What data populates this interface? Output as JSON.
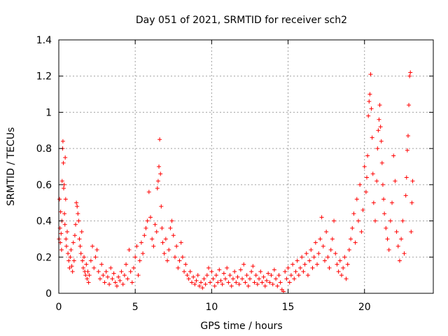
{
  "chart_data": {
    "type": "scatter",
    "title": "Day 051 of 2021, SRMTID for receiver sch2",
    "xlabel": "GPS time / hours",
    "ylabel": "SRMTID / TECUs",
    "xlim": [
      0,
      24.5
    ],
    "ylim": [
      0,
      1.4
    ],
    "xticks": [
      0,
      5,
      10,
      15,
      20
    ],
    "xtick_labels": [
      "0",
      "5",
      "10",
      "15",
      "20"
    ],
    "yticks": [
      0,
      0.2,
      0.4,
      0.6,
      0.8,
      1.0,
      1.2,
      1.4
    ],
    "ytick_labels": [
      "0",
      "0.2",
      "0.4",
      "0.6",
      "0.8",
      "1",
      "1.2",
      "1.4"
    ],
    "grid": true,
    "marker": "plus",
    "series": [
      {
        "name": "sch2",
        "color": "#ff0000",
        "points": [
          [
            0.02,
            0.3
          ],
          [
            0.05,
            0.52
          ],
          [
            0.08,
            0.36
          ],
          [
            0.1,
            0.28
          ],
          [
            0.12,
            0.45
          ],
          [
            0.15,
            0.33
          ],
          [
            0.18,
            0.24
          ],
          [
            0.2,
            0.4
          ],
          [
            0.22,
            0.62
          ],
          [
            0.25,
            0.8
          ],
          [
            0.27,
            0.84
          ],
          [
            0.3,
            0.72
          ],
          [
            0.32,
            0.58
          ],
          [
            0.35,
            0.6
          ],
          [
            0.37,
            0.44
          ],
          [
            0.4,
            0.38
          ],
          [
            0.42,
            0.75
          ],
          [
            0.45,
            0.52
          ],
          [
            0.47,
            0.3
          ],
          [
            0.5,
            0.26
          ],
          [
            0.55,
            0.34
          ],
          [
            0.6,
            0.22
          ],
          [
            0.65,
            0.18
          ],
          [
            0.7,
            0.14
          ],
          [
            0.75,
            0.2
          ],
          [
            0.8,
            0.24
          ],
          [
            0.85,
            0.15
          ],
          [
            0.9,
            0.12
          ],
          [
            0.95,
            0.28
          ],
          [
            1.0,
            0.18
          ],
          [
            1.05,
            0.32
          ],
          [
            1.1,
            0.38
          ],
          [
            1.15,
            0.5
          ],
          [
            1.2,
            0.48
          ],
          [
            1.25,
            0.44
          ],
          [
            1.3,
            0.4
          ],
          [
            1.35,
            0.3
          ],
          [
            1.4,
            0.26
          ],
          [
            1.45,
            0.22
          ],
          [
            1.5,
            0.34
          ],
          [
            1.55,
            0.18
          ],
          [
            1.6,
            0.14
          ],
          [
            1.65,
            0.2
          ],
          [
            1.7,
            0.12
          ],
          [
            1.75,
            0.1
          ],
          [
            1.8,
            0.16
          ],
          [
            1.85,
            0.08
          ],
          [
            1.9,
            0.12
          ],
          [
            1.95,
            0.06
          ],
          [
            2.0,
            0.1
          ],
          [
            2.1,
            0.18
          ],
          [
            2.2,
            0.26
          ],
          [
            2.3,
            0.14
          ],
          [
            2.4,
            0.2
          ],
          [
            2.5,
            0.24
          ],
          [
            2.6,
            0.12
          ],
          [
            2.7,
            0.08
          ],
          [
            2.8,
            0.16
          ],
          [
            2.9,
            0.1
          ],
          [
            3.0,
            0.06
          ],
          [
            3.1,
            0.12
          ],
          [
            3.2,
            0.09
          ],
          [
            3.3,
            0.05
          ],
          [
            3.4,
            0.14
          ],
          [
            3.5,
            0.08
          ],
          [
            3.6,
            0.11
          ],
          [
            3.7,
            0.06
          ],
          [
            3.8,
            0.04
          ],
          [
            3.9,
            0.09
          ],
          [
            4.0,
            0.07
          ],
          [
            4.1,
            0.12
          ],
          [
            4.2,
            0.05
          ],
          [
            4.3,
            0.1
          ],
          [
            4.4,
            0.16
          ],
          [
            4.5,
            0.08
          ],
          [
            4.6,
            0.24
          ],
          [
            4.7,
            0.12
          ],
          [
            4.8,
            0.06
          ],
          [
            4.9,
            0.14
          ],
          [
            5.0,
            0.2
          ],
          [
            5.1,
            0.26
          ],
          [
            5.2,
            0.1
          ],
          [
            5.3,
            0.18
          ],
          [
            5.4,
            0.28
          ],
          [
            5.5,
            0.22
          ],
          [
            5.6,
            0.32
          ],
          [
            5.7,
            0.36
          ],
          [
            5.8,
            0.4
          ],
          [
            5.9,
            0.56
          ],
          [
            6.0,
            0.42
          ],
          [
            6.1,
            0.3
          ],
          [
            6.2,
            0.26
          ],
          [
            6.3,
            0.38
          ],
          [
            6.4,
            0.34
          ],
          [
            6.45,
            0.58
          ],
          [
            6.5,
            0.62
          ],
          [
            6.55,
            0.7
          ],
          [
            6.6,
            0.85
          ],
          [
            6.65,
            0.66
          ],
          [
            6.7,
            0.48
          ],
          [
            6.75,
            0.36
          ],
          [
            6.8,
            0.28
          ],
          [
            6.9,
            0.22
          ],
          [
            7.0,
            0.3
          ],
          [
            7.1,
            0.18
          ],
          [
            7.2,
            0.24
          ],
          [
            7.3,
            0.36
          ],
          [
            7.4,
            0.4
          ],
          [
            7.5,
            0.32
          ],
          [
            7.6,
            0.2
          ],
          [
            7.7,
            0.26
          ],
          [
            7.8,
            0.14
          ],
          [
            7.9,
            0.18
          ],
          [
            8.0,
            0.28
          ],
          [
            8.1,
            0.2
          ],
          [
            8.2,
            0.12
          ],
          [
            8.3,
            0.16
          ],
          [
            8.4,
            0.1
          ],
          [
            8.5,
            0.08
          ],
          [
            8.6,
            0.12
          ],
          [
            8.7,
            0.06
          ],
          [
            8.8,
            0.09
          ],
          [
            8.9,
            0.05
          ],
          [
            9.0,
            0.07
          ],
          [
            9.1,
            0.1
          ],
          [
            9.2,
            0.04
          ],
          [
            9.3,
            0.06
          ],
          [
            9.4,
            0.03
          ],
          [
            9.5,
            0.08
          ],
          [
            9.6,
            0.05
          ],
          [
            9.7,
            0.1
          ],
          [
            9.8,
            0.14
          ],
          [
            9.9,
            0.06
          ],
          [
            10.0,
            0.12
          ],
          [
            10.1,
            0.08
          ],
          [
            10.2,
            0.04
          ],
          [
            10.3,
            0.1
          ],
          [
            10.4,
            0.06
          ],
          [
            10.5,
            0.13
          ],
          [
            10.6,
            0.07
          ],
          [
            10.7,
            0.05
          ],
          [
            10.8,
            0.11
          ],
          [
            10.9,
            0.08
          ],
          [
            11.0,
            0.14
          ],
          [
            11.1,
            0.06
          ],
          [
            11.2,
            0.1
          ],
          [
            11.3,
            0.04
          ],
          [
            11.4,
            0.08
          ],
          [
            11.5,
            0.12
          ],
          [
            11.6,
            0.06
          ],
          [
            11.7,
            0.09
          ],
          [
            11.8,
            0.05
          ],
          [
            11.9,
            0.13
          ],
          [
            12.0,
            0.08
          ],
          [
            12.1,
            0.16
          ],
          [
            12.2,
            0.06
          ],
          [
            12.3,
            0.1
          ],
          [
            12.4,
            0.04
          ],
          [
            12.5,
            0.08
          ],
          [
            12.6,
            0.12
          ],
          [
            12.7,
            0.15
          ],
          [
            12.8,
            0.06
          ],
          [
            12.9,
            0.1
          ],
          [
            13.0,
            0.05
          ],
          [
            13.1,
            0.08
          ],
          [
            13.2,
            0.12
          ],
          [
            13.3,
            0.06
          ],
          [
            13.4,
            0.09
          ],
          [
            13.5,
            0.04
          ],
          [
            13.6,
            0.07
          ],
          [
            13.7,
            0.11
          ],
          [
            13.8,
            0.06
          ],
          [
            13.9,
            0.1
          ],
          [
            14.0,
            0.05
          ],
          [
            14.1,
            0.13
          ],
          [
            14.2,
            0.08
          ],
          [
            14.3,
            0.04
          ],
          [
            14.4,
            0.1
          ],
          [
            14.5,
            0.06
          ],
          [
            14.6,
            0.02
          ],
          [
            14.7,
            0.01
          ],
          [
            14.8,
            0.12
          ],
          [
            14.9,
            0.08
          ],
          [
            15.0,
            0.14
          ],
          [
            15.1,
            0.06
          ],
          [
            15.2,
            0.1
          ],
          [
            15.3,
            0.16
          ],
          [
            15.4,
            0.08
          ],
          [
            15.5,
            0.12
          ],
          [
            15.6,
            0.18
          ],
          [
            15.7,
            0.1
          ],
          [
            15.8,
            0.14
          ],
          [
            15.9,
            0.2
          ],
          [
            16.0,
            0.12
          ],
          [
            16.1,
            0.16
          ],
          [
            16.2,
            0.22
          ],
          [
            16.3,
            0.1
          ],
          [
            16.4,
            0.18
          ],
          [
            16.5,
            0.24
          ],
          [
            16.6,
            0.14
          ],
          [
            16.7,
            0.2
          ],
          [
            16.8,
            0.28
          ],
          [
            16.9,
            0.16
          ],
          [
            17.0,
            0.22
          ],
          [
            17.1,
            0.3
          ],
          [
            17.2,
            0.42
          ],
          [
            17.3,
            0.26
          ],
          [
            17.4,
            0.18
          ],
          [
            17.5,
            0.34
          ],
          [
            17.6,
            0.2
          ],
          [
            17.7,
            0.14
          ],
          [
            17.8,
            0.24
          ],
          [
            17.9,
            0.3
          ],
          [
            18.0,
            0.4
          ],
          [
            18.1,
            0.22
          ],
          [
            18.2,
            0.16
          ],
          [
            18.3,
            0.12
          ],
          [
            18.4,
            0.18
          ],
          [
            18.5,
            0.1
          ],
          [
            18.6,
            0.14
          ],
          [
            18.7,
            0.2
          ],
          [
            18.8,
            0.08
          ],
          [
            18.9,
            0.16
          ],
          [
            19.0,
            0.24
          ],
          [
            19.1,
            0.3
          ],
          [
            19.2,
            0.36
          ],
          [
            19.3,
            0.44
          ],
          [
            19.4,
            0.28
          ],
          [
            19.5,
            0.52
          ],
          [
            19.6,
            0.4
          ],
          [
            19.7,
            0.6
          ],
          [
            19.8,
            0.34
          ],
          [
            19.9,
            0.46
          ],
          [
            20.0,
            0.7
          ],
          [
            20.1,
            0.56
          ],
          [
            20.15,
            0.64
          ],
          [
            20.2,
            0.76
          ],
          [
            20.25,
            0.98
          ],
          [
            20.3,
            1.06
          ],
          [
            20.35,
            1.1
          ],
          [
            20.4,
            1.21
          ],
          [
            20.45,
            1.02
          ],
          [
            20.5,
            0.86
          ],
          [
            20.55,
            0.66
          ],
          [
            20.6,
            0.5
          ],
          [
            20.7,
            0.4
          ],
          [
            20.8,
            0.62
          ],
          [
            20.85,
            0.8
          ],
          [
            20.9,
            0.9
          ],
          [
            20.95,
            0.96
          ],
          [
            21.0,
            1.04
          ],
          [
            21.05,
            0.92
          ],
          [
            21.1,
            0.84
          ],
          [
            21.15,
            0.72
          ],
          [
            21.2,
            0.6
          ],
          [
            21.25,
            0.52
          ],
          [
            21.3,
            0.44
          ],
          [
            21.4,
            0.36
          ],
          [
            21.5,
            0.3
          ],
          [
            21.6,
            0.24
          ],
          [
            21.7,
            0.4
          ],
          [
            21.8,
            0.5
          ],
          [
            21.9,
            0.76
          ],
          [
            22.0,
            0.62
          ],
          [
            22.1,
            0.34
          ],
          [
            22.2,
            0.26
          ],
          [
            22.3,
            0.18
          ],
          [
            22.4,
            0.3
          ],
          [
            22.5,
            0.4
          ],
          [
            22.6,
            0.22
          ],
          [
            22.7,
            0.54
          ],
          [
            22.75,
            0.64
          ],
          [
            22.8,
            0.79
          ],
          [
            22.85,
            0.87
          ],
          [
            22.9,
            1.04
          ],
          [
            22.95,
            1.2
          ],
          [
            23.0,
            1.22
          ],
          [
            23.05,
            0.34
          ],
          [
            23.1,
            0.5
          ],
          [
            23.15,
            0.62
          ]
        ]
      }
    ]
  }
}
